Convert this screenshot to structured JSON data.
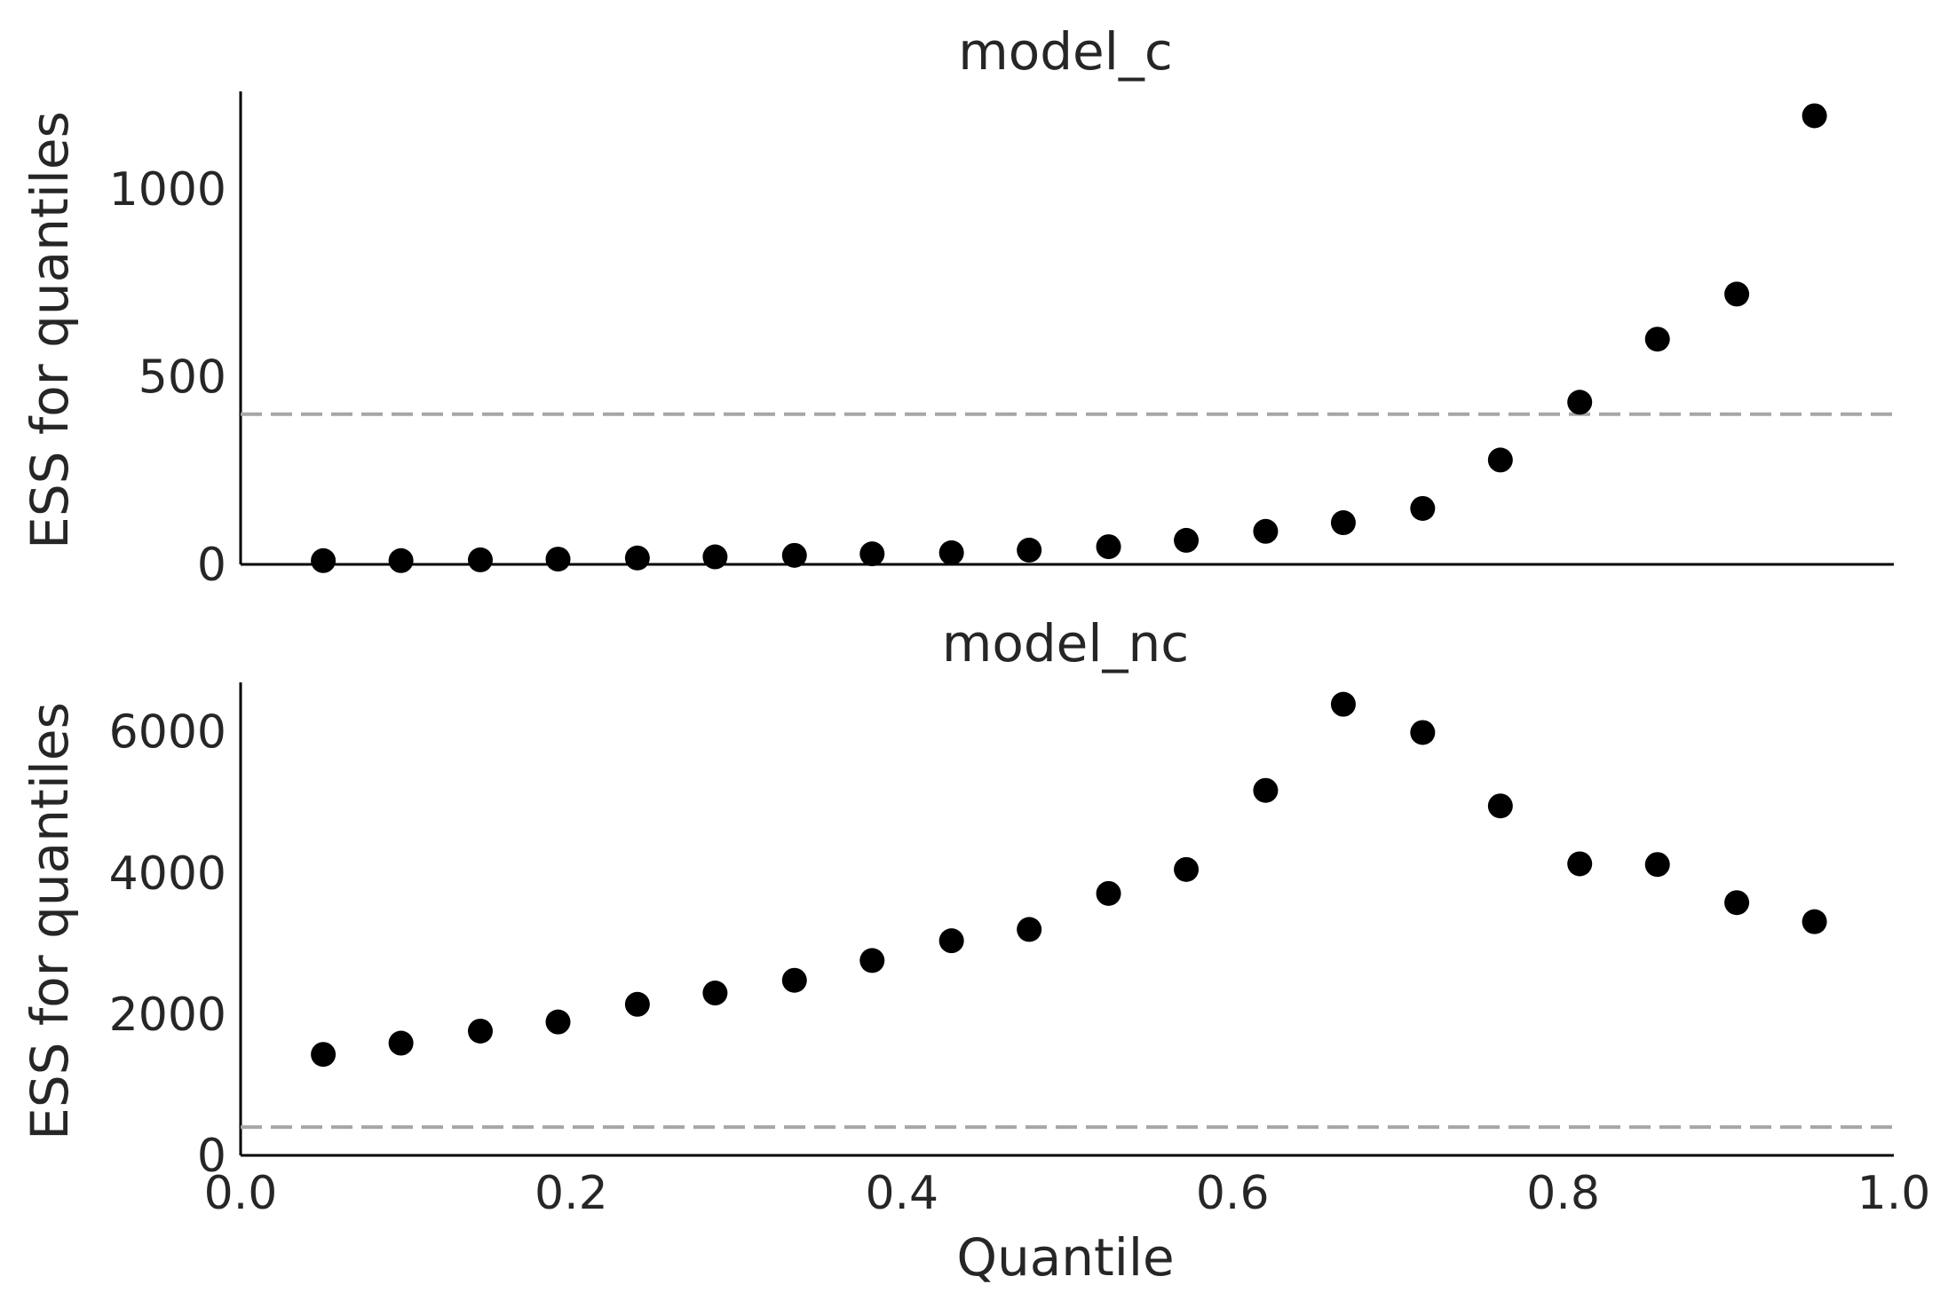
{
  "chart_data": [
    {
      "type": "scatter",
      "title": "model_c",
      "ylabel": "ESS for quantiles",
      "xlabel": "",
      "xlim": [
        0.0,
        1.0
      ],
      "ylim": [
        0,
        1260
      ],
      "x_ticks": [],
      "y_ticks": [
        "0",
        "500",
        "1000"
      ],
      "reference_line": 400,
      "series": [
        {
          "x": [
            0.05,
            0.097,
            0.145,
            0.192,
            0.24,
            0.287,
            0.335,
            0.382,
            0.43,
            0.477,
            0.525,
            0.572,
            0.62,
            0.667,
            0.715,
            0.762,
            0.81,
            0.857,
            0.905,
            0.952
          ],
          "values": [
            10,
            10,
            12,
            14,
            17,
            20,
            24,
            28,
            31,
            38,
            47,
            64,
            88,
            111,
            149,
            278,
            432,
            600,
            720,
            1195
          ]
        }
      ],
      "colors": {
        "points": "#000000",
        "reference_line": "#a6a6a6"
      }
    },
    {
      "type": "scatter",
      "title": "model_nc",
      "ylabel": "ESS for quantiles",
      "xlabel": "Quantile",
      "xlim": [
        0.0,
        1.0
      ],
      "ylim": [
        0,
        6700
      ],
      "x_ticks": [
        "0.0",
        "0.2",
        "0.4",
        "0.6",
        "0.8",
        "1.0"
      ],
      "y_ticks": [
        "0",
        "2000",
        "4000",
        "6000"
      ],
      "reference_line": 400,
      "series": [
        {
          "x": [
            0.05,
            0.097,
            0.145,
            0.192,
            0.24,
            0.287,
            0.335,
            0.382,
            0.43,
            0.477,
            0.525,
            0.572,
            0.62,
            0.667,
            0.715,
            0.762,
            0.81,
            0.857,
            0.905,
            0.952
          ],
          "values": [
            1430,
            1590,
            1760,
            1890,
            2140,
            2300,
            2480,
            2760,
            3040,
            3200,
            3710,
            4050,
            5170,
            6390,
            5990,
            4950,
            4130,
            4120,
            3580,
            3310
          ]
        }
      ],
      "colors": {
        "points": "#000000",
        "reference_line": "#a6a6a6"
      }
    }
  ]
}
